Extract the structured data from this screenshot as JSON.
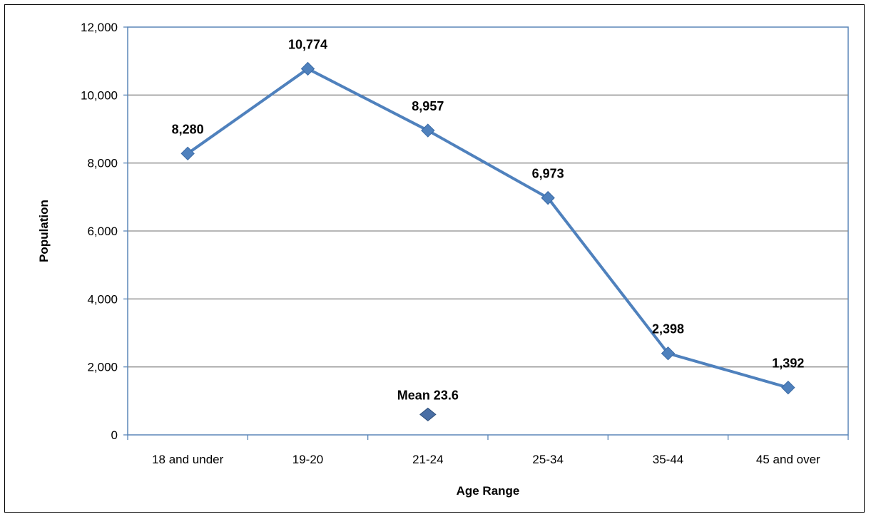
{
  "chart_data": {
    "type": "line",
    "categories": [
      "18 and under",
      "19-20",
      "21-24",
      "25-34",
      "35-44",
      "45 and over"
    ],
    "series": [
      {
        "values": [
          8280,
          10774,
          8957,
          6973,
          2398,
          1392
        ],
        "color": "#4F81BD"
      }
    ],
    "data_labels": [
      "8,280",
      "10,774",
      "8,957",
      "6,973",
      "2,398",
      "1,392"
    ],
    "y_ticks": [
      "0",
      "2,000",
      "4,000",
      "6,000",
      "8,000",
      "10,000",
      "12,000"
    ],
    "ylim": [
      0,
      12000
    ],
    "xlabel": "Age Range",
    "ylabel": "Population",
    "grid": true,
    "annotation": {
      "text": "Mean 23.6",
      "category": "21-24",
      "value": 600,
      "color": "#4A6FA5"
    }
  }
}
